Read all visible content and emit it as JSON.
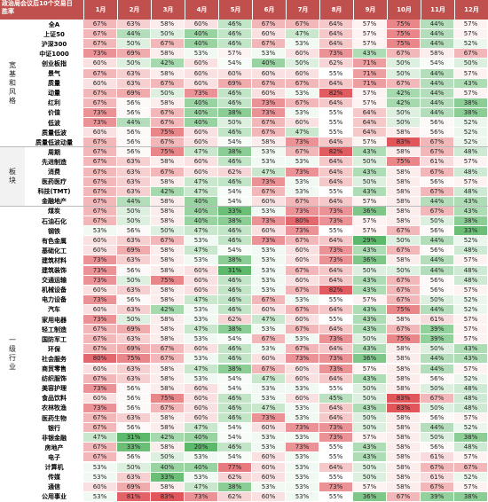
{
  "header": {
    "title_line1": "政治局会议后10个交易日",
    "title_line2": "胜率",
    "months": [
      "1月",
      "2月",
      "3月",
      "4月",
      "5月",
      "6月",
      "7月",
      "8月",
      "9月",
      "10月",
      "11月",
      "12月"
    ]
  },
  "groups": [
    {
      "label": "宽基和风格",
      "rows": [
        {
          "name": "全A",
          "values": [
            67,
            63,
            58,
            60,
            46,
            67,
            67,
            64,
            57,
            75,
            44,
            57
          ]
        },
        {
          "name": "上证50",
          "values": [
            67,
            44,
            50,
            40,
            46,
            60,
            47,
            64,
            57,
            75,
            44,
            57
          ]
        },
        {
          "name": "沪深300",
          "values": [
            67,
            50,
            67,
            40,
            46,
            67,
            53,
            64,
            57,
            75,
            44,
            52
          ]
        },
        {
          "name": "中证1000",
          "values": [
            73,
            69,
            58,
            53,
            57,
            53,
            60,
            73,
            43,
            67,
            58,
            67
          ]
        },
        {
          "name": "创业板指",
          "values": [
            60,
            50,
            42,
            60,
            54,
            40,
            50,
            62,
            71,
            50,
            54,
            50
          ]
        },
        {
          "name": "景气",
          "values": [
            67,
            63,
            58,
            60,
            60,
            60,
            60,
            55,
            71,
            50,
            44,
            57
          ]
        },
        {
          "name": "质量",
          "values": [
            60,
            63,
            67,
            60,
            69,
            67,
            67,
            64,
            71,
            67,
            44,
            43
          ]
        },
        {
          "name": "动量",
          "values": [
            67,
            69,
            50,
            73,
            46,
            60,
            53,
            82,
            57,
            42,
            44,
            57
          ]
        },
        {
          "name": "红利",
          "values": [
            67,
            56,
            58,
            40,
            46,
            73,
            67,
            64,
            57,
            42,
            44,
            38
          ]
        },
        {
          "name": "价值",
          "values": [
            73,
            56,
            67,
            40,
            38,
            73,
            53,
            55,
            64,
            50,
            44,
            38
          ]
        },
        {
          "name": "低波",
          "values": [
            73,
            44,
            67,
            40,
            50,
            67,
            60,
            55,
            64,
            50,
            56,
            52
          ]
        },
        {
          "name": "质量低波",
          "values": [
            60,
            56,
            75,
            60,
            46,
            67,
            47,
            55,
            64,
            58,
            56,
            52
          ]
        },
        {
          "name": "质量低波动量",
          "values": [
            67,
            56,
            67,
            60,
            54,
            58,
            73,
            64,
            57,
            83,
            67,
            52
          ]
        }
      ]
    },
    {
      "label": "板块",
      "rows": [
        {
          "name": "周期",
          "values": [
            67,
            56,
            75,
            47,
            38,
            53,
            67,
            82,
            43,
            58,
            67,
            48
          ]
        },
        {
          "name": "先进制造",
          "values": [
            67,
            63,
            58,
            60,
            46,
            53,
            53,
            64,
            50,
            75,
            61,
            57
          ]
        },
        {
          "name": "消费",
          "values": [
            67,
            63,
            67,
            60,
            62,
            47,
            73,
            64,
            43,
            58,
            67,
            48
          ]
        },
        {
          "name": "医药医疗",
          "values": [
            67,
            63,
            58,
            47,
            46,
            73,
            53,
            64,
            50,
            58,
            56,
            57
          ]
        },
        {
          "name": "科技(TMT)",
          "values": [
            67,
            63,
            42,
            47,
            54,
            67,
            53,
            55,
            43,
            58,
            67,
            48
          ]
        },
        {
          "name": "金融地产",
          "values": [
            67,
            44,
            58,
            40,
            54,
            60,
            67,
            64,
            57,
            58,
            44,
            43
          ]
        }
      ]
    },
    {
      "label": "一级行业",
      "rows": [
        {
          "name": "煤炭",
          "values": [
            67,
            50,
            58,
            40,
            33,
            53,
            73,
            73,
            36,
            58,
            67,
            43
          ]
        },
        {
          "name": "石油石化",
          "values": [
            67,
            50,
            58,
            40,
            38,
            73,
            80,
            73,
            57,
            58,
            50,
            38
          ]
        },
        {
          "name": "钢铁",
          "values": [
            53,
            56,
            50,
            47,
            46,
            60,
            73,
            55,
            57,
            67,
            56,
            33
          ]
        },
        {
          "name": "有色金属",
          "values": [
            60,
            63,
            67,
            53,
            46,
            73,
            67,
            64,
            29,
            50,
            44,
            52
          ]
        },
        {
          "name": "基础化工",
          "values": [
            60,
            69,
            58,
            47,
            54,
            53,
            60,
            73,
            43,
            67,
            56,
            48
          ]
        },
        {
          "name": "建筑材料",
          "values": [
            73,
            63,
            58,
            53,
            38,
            53,
            60,
            73,
            36,
            58,
            44,
            57
          ]
        },
        {
          "name": "建筑装饰",
          "values": [
            73,
            56,
            58,
            60,
            31,
            53,
            67,
            64,
            50,
            50,
            44,
            48
          ]
        },
        {
          "name": "交通运输",
          "values": [
            73,
            50,
            75,
            60,
            46,
            53,
            60,
            64,
            43,
            67,
            56,
            48
          ]
        },
        {
          "name": "机械设备",
          "values": [
            60,
            63,
            58,
            60,
            46,
            53,
            67,
            82,
            43,
            67,
            56,
            57
          ]
        },
        {
          "name": "电力设备",
          "values": [
            73,
            56,
            58,
            47,
            46,
            67,
            53,
            55,
            57,
            67,
            50,
            52
          ]
        },
        {
          "name": "汽车",
          "values": [
            60,
            63,
            42,
            53,
            46,
            60,
            67,
            64,
            43,
            75,
            44,
            52
          ]
        },
        {
          "name": "家用电器",
          "values": [
            73,
            50,
            58,
            53,
            62,
            47,
            60,
            55,
            43,
            58,
            61,
            57
          ]
        },
        {
          "name": "轻工制造",
          "values": [
            67,
            69,
            58,
            47,
            38,
            53,
            67,
            64,
            43,
            67,
            39,
            57
          ]
        },
        {
          "name": "国防军工",
          "values": [
            67,
            63,
            58,
            53,
            54,
            67,
            53,
            73,
            50,
            75,
            39,
            57
          ]
        },
        {
          "name": "环保",
          "values": [
            67,
            69,
            67,
            60,
            46,
            53,
            67,
            64,
            43,
            58,
            50,
            43
          ]
        },
        {
          "name": "社会服务",
          "values": [
            80,
            75,
            67,
            53,
            46,
            60,
            73,
            73,
            36,
            58,
            44,
            43
          ]
        },
        {
          "name": "商贸零售",
          "values": [
            60,
            63,
            58,
            47,
            38,
            67,
            60,
            73,
            57,
            58,
            44,
            57
          ]
        },
        {
          "name": "纺织服饰",
          "values": [
            67,
            63,
            58,
            53,
            54,
            47,
            60,
            64,
            43,
            58,
            56,
            52
          ]
        },
        {
          "name": "美容护理",
          "values": [
            73,
            56,
            58,
            60,
            54,
            53,
            53,
            55,
            50,
            58,
            50,
            48
          ]
        },
        {
          "name": "食品饮料",
          "values": [
            60,
            56,
            75,
            60,
            46,
            53,
            60,
            45,
            50,
            83,
            67,
            48
          ]
        },
        {
          "name": "农林牧渔",
          "values": [
            73,
            56,
            67,
            60,
            46,
            47,
            53,
            64,
            43,
            83,
            50,
            48
          ]
        },
        {
          "name": "医药生物",
          "values": [
            67,
            63,
            58,
            60,
            46,
            73,
            53,
            64,
            50,
            58,
            56,
            57
          ]
        },
        {
          "name": "银行",
          "values": [
            67,
            56,
            58,
            47,
            54,
            60,
            73,
            73,
            50,
            58,
            44,
            52
          ]
        },
        {
          "name": "非银金融",
          "values": [
            47,
            31,
            42,
            40,
            54,
            53,
            53,
            73,
            57,
            58,
            50,
            38
          ]
        },
        {
          "name": "房地产",
          "values": [
            67,
            33,
            58,
            20,
            46,
            53,
            73,
            55,
            43,
            58,
            56,
            48
          ]
        },
        {
          "name": "电子",
          "values": [
            67,
            56,
            50,
            53,
            54,
            60,
            53,
            55,
            43,
            58,
            61,
            57
          ]
        },
        {
          "name": "计算机",
          "values": [
            53,
            50,
            40,
            40,
            77,
            60,
            53,
            64,
            50,
            58,
            67,
            67
          ]
        },
        {
          "name": "传媒",
          "values": [
            53,
            63,
            33,
            53,
            62,
            60,
            53,
            55,
            50,
            58,
            61,
            52
          ]
        },
        {
          "name": "通信",
          "values": [
            60,
            69,
            58,
            47,
            38,
            53,
            53,
            73,
            57,
            58,
            67,
            57
          ]
        },
        {
          "name": "公用事业",
          "values": [
            53,
            81,
            83,
            73,
            62,
            60,
            53,
            55,
            36,
            67,
            39,
            38
          ]
        }
      ]
    }
  ],
  "colors": {
    "header_bg": "#c0504d",
    "high": "#e0565b",
    "mid": "#ffffff",
    "low": "#5cb86a"
  }
}
